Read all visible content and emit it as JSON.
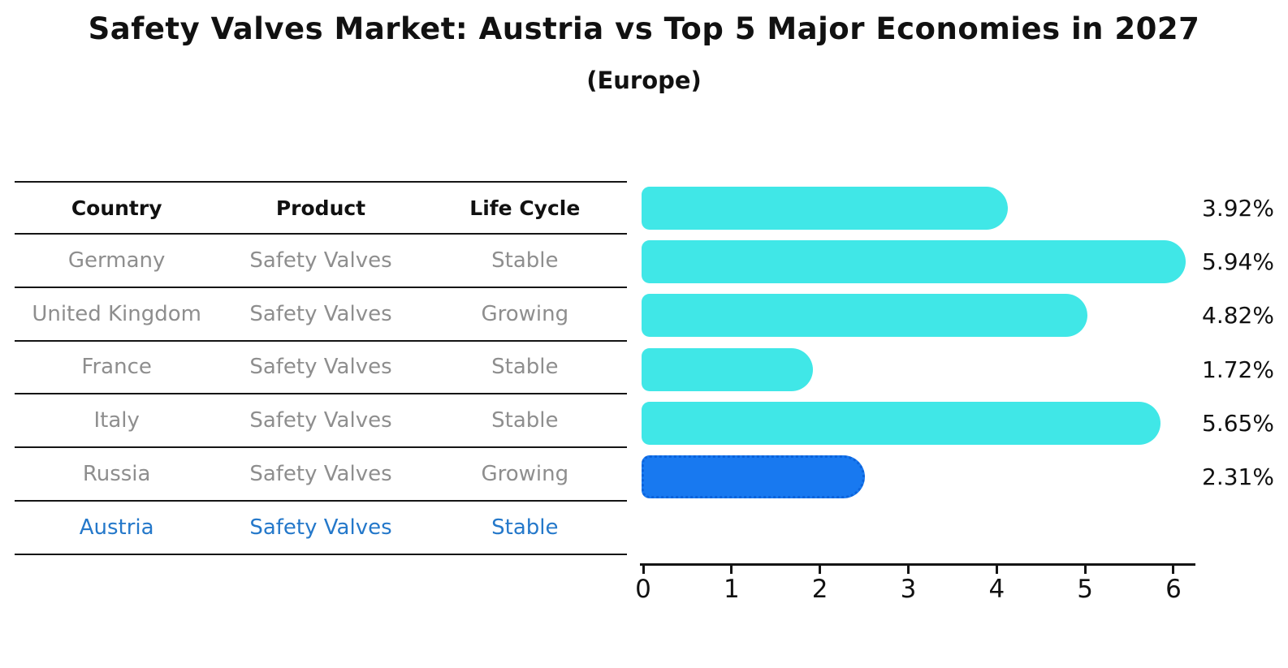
{
  "title": "Safety Valves Market: Austria vs Top 5 Major Economies in 2027",
  "subtitle": "(Europe)",
  "table": {
    "headers": [
      "Country",
      "Product",
      "Life Cycle"
    ]
  },
  "chart_data": {
    "type": "bar",
    "orientation": "horizontal",
    "title": "Safety Valves Market: Austria vs Top 5 Major Economies in 2027",
    "subtitle": "(Europe)",
    "xlabel": "",
    "ylabel": "",
    "xlim": [
      0,
      6.3
    ],
    "x_ticks": [
      "0",
      "1",
      "2",
      "3",
      "4",
      "5",
      "6"
    ],
    "grid": false,
    "legend": "none",
    "value_suffix": "%",
    "rows": [
      {
        "country": "Germany",
        "product": "Safety Valves",
        "life_cycle": "Stable",
        "value": 3.92,
        "value_label": "3.92%",
        "highlight": false
      },
      {
        "country": "United Kingdom",
        "product": "Safety Valves",
        "life_cycle": "Growing",
        "value": 5.94,
        "value_label": "5.94%",
        "highlight": false
      },
      {
        "country": "France",
        "product": "Safety Valves",
        "life_cycle": "Stable",
        "value": 4.82,
        "value_label": "4.82%",
        "highlight": false
      },
      {
        "country": "Italy",
        "product": "Safety Valves",
        "life_cycle": "Stable",
        "value": 1.72,
        "value_label": "1.72%",
        "highlight": false
      },
      {
        "country": "Russia",
        "product": "Safety Valves",
        "life_cycle": "Growing",
        "value": 5.65,
        "value_label": "5.65%",
        "highlight": false
      },
      {
        "country": "Austria",
        "product": "Safety Valves",
        "life_cycle": "Stable",
        "value": 2.31,
        "value_label": "2.31%",
        "highlight": true
      }
    ],
    "colors": {
      "bar": "#40E7E7",
      "highlight_bar": "#1879F0",
      "highlight_bar_border": "#0B63DB",
      "highlight_text": "#2478CA",
      "text_gray": "#8E8E8E",
      "axis": "#141414",
      "background": "#FFFFFF"
    }
  }
}
